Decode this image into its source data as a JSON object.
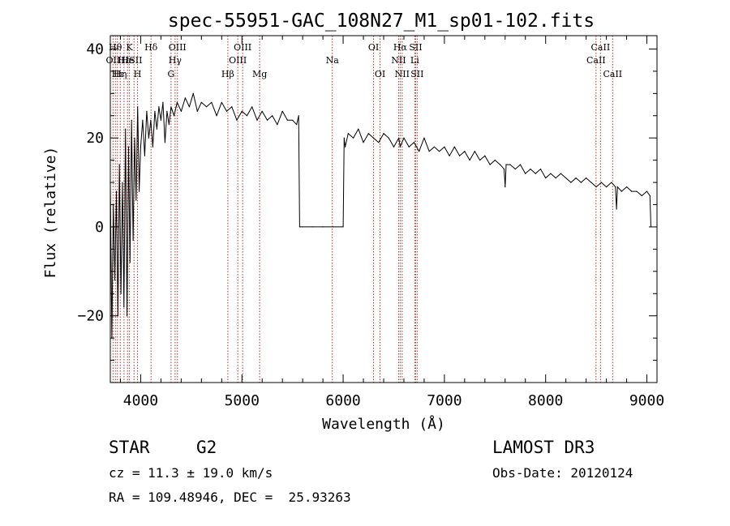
{
  "chart_data": {
    "type": "line",
    "title": "spec-55951-GAC_108N27_M1_sp01-102.fits",
    "xlabel": "Wavelength (Å)",
    "ylabel": "Flux (relative)",
    "xlim": [
      3700,
      9100
    ],
    "ylim": [
      -35,
      43
    ],
    "xticks": [
      {
        "value": 4000,
        "label": "4000"
      },
      {
        "value": 5000,
        "label": "5000"
      },
      {
        "value": 6000,
        "label": "6000"
      },
      {
        "value": 7000,
        "label": "7000"
      },
      {
        "value": 8000,
        "label": "8000"
      },
      {
        "value": 9000,
        "label": "9000"
      }
    ],
    "yticks": [
      {
        "value": -20,
        "label": "−20"
      },
      {
        "value": 0,
        "label": "0"
      },
      {
        "value": 20,
        "label": "20"
      },
      {
        "value": 40,
        "label": "40"
      }
    ],
    "grid": false,
    "series": [
      {
        "name": "flux",
        "color": "#000000",
        "x": [
          3700,
          3715,
          3730,
          3745,
          3760,
          3775,
          3790,
          3805,
          3820,
          3835,
          3850,
          3865,
          3880,
          3895,
          3910,
          3925,
          3940,
          3955,
          3970,
          3985,
          4000,
          4020,
          4040,
          4060,
          4080,
          4100,
          4120,
          4140,
          4160,
          4180,
          4200,
          4220,
          4240,
          4260,
          4280,
          4300,
          4330,
          4360,
          4400,
          4440,
          4480,
          4520,
          4560,
          4600,
          4650,
          4700,
          4750,
          4800,
          4850,
          4900,
          4950,
          5000,
          5050,
          5100,
          5150,
          5200,
          5250,
          5300,
          5350,
          5400,
          5450,
          5500,
          5540,
          5560,
          5570,
          5600,
          5700,
          5800,
          5900,
          6000,
          6010,
          6020,
          6050,
          6100,
          6150,
          6200,
          6250,
          6300,
          6350,
          6400,
          6450,
          6500,
          6550,
          6563,
          6600,
          6650,
          6700,
          6750,
          6800,
          6850,
          6900,
          6950,
          7000,
          7050,
          7100,
          7150,
          7200,
          7250,
          7300,
          7350,
          7400,
          7450,
          7500,
          7550,
          7590,
          7600,
          7610,
          7650,
          7700,
          7750,
          7800,
          7850,
          7900,
          7950,
          8000,
          8050,
          8100,
          8150,
          8200,
          8250,
          8300,
          8350,
          8400,
          8450,
          8500,
          8550,
          8600,
          8650,
          8690,
          8700,
          8710,
          8750,
          8800,
          8850,
          8900,
          8950,
          9000,
          9030,
          9040
        ],
        "y": [
          10,
          -25,
          5,
          -12,
          8,
          -20,
          14,
          -15,
          10,
          -18,
          22,
          -20,
          18,
          -8,
          24,
          -3,
          20,
          6,
          27,
          8,
          18,
          24,
          16,
          26,
          20,
          24,
          18,
          26,
          22,
          27,
          24,
          28,
          19,
          26,
          23,
          27,
          25,
          28,
          26,
          29,
          27,
          30,
          26,
          28,
          27,
          28,
          25,
          28,
          26,
          27,
          24,
          26,
          25,
          27,
          24,
          26,
          24,
          25,
          23,
          26,
          24,
          24,
          23,
          25,
          0,
          0,
          0,
          0,
          0,
          0,
          20,
          18,
          21,
          20,
          22,
          19,
          21,
          20,
          19,
          21,
          20,
          18,
          20,
          18,
          20,
          18,
          19,
          17,
          20,
          17,
          18,
          17,
          18,
          16,
          18,
          16,
          17,
          15,
          17,
          15,
          16,
          14,
          15,
          14,
          13,
          9,
          14,
          14,
          13,
          14,
          12,
          13,
          12,
          13,
          11,
          12,
          11,
          12,
          11,
          10,
          11,
          10,
          11,
          10,
          9,
          10,
          9,
          10,
          9,
          4,
          9,
          8,
          9,
          8,
          8,
          7,
          8,
          7,
          0
        ]
      }
    ],
    "line_color": "#b03030",
    "spectral_lines": [
      {
        "x": 3727,
        "label": "OII",
        "row": 2
      },
      {
        "x": 3750,
        "label": "Hθ",
        "row": 1
      },
      {
        "x": 3770,
        "label": "Hι",
        "row": 3
      },
      {
        "x": 3798,
        "label": "Hη",
        "row": 3
      },
      {
        "x": 3835,
        "label": "Hε",
        "row": 2
      },
      {
        "x": 3870,
        "label": "He",
        "row": 2
      },
      {
        "x": 3889,
        "label": "K",
        "row": 1
      },
      {
        "x": 3934,
        "label": "ISII",
        "row": 2
      },
      {
        "x": 3969,
        "label": "H",
        "row": 3
      },
      {
        "x": 4102,
        "label": "Hδ",
        "row": 1
      },
      {
        "x": 4300,
        "label": "G",
        "row": 3
      },
      {
        "x": 4340,
        "label": "Hγ",
        "row": 2
      },
      {
        "x": 4363,
        "label": "OIII",
        "row": 1
      },
      {
        "x": 4861,
        "label": "Hβ",
        "row": 3
      },
      {
        "x": 4959,
        "label": "OIII",
        "row": 2
      },
      {
        "x": 5007,
        "label": "OIII",
        "row": 1
      },
      {
        "x": 5175,
        "label": "Mg",
        "row": 3
      },
      {
        "x": 5893,
        "label": "Na",
        "row": 2
      },
      {
        "x": 6300,
        "label": "OI",
        "row": 1
      },
      {
        "x": 6364,
        "label": "OI",
        "row": 3
      },
      {
        "x": 6548,
        "label": "NII",
        "row": 2
      },
      {
        "x": 6563,
        "label": "Hα",
        "row": 1
      },
      {
        "x": 6583,
        "label": "NII",
        "row": 3
      },
      {
        "x": 6707,
        "label": "Li",
        "row": 2
      },
      {
        "x": 6716,
        "label": "SII",
        "row": 1
      },
      {
        "x": 6731,
        "label": "SII",
        "row": 3
      },
      {
        "x": 8498,
        "label": "CaII",
        "row": 2
      },
      {
        "x": 8542,
        "label": "CaII",
        "row": 1
      },
      {
        "x": 8662,
        "label": "CaII",
        "row": 3
      }
    ]
  },
  "info": {
    "object_class": "STAR",
    "subclass": "G2",
    "survey": "LAMOST DR3",
    "cz": "cz = 11.3 ± 19.0 km/s",
    "obs_date": "Obs-Date: 20120124",
    "coords": "RA = 109.48946, DEC =  25.93263"
  }
}
